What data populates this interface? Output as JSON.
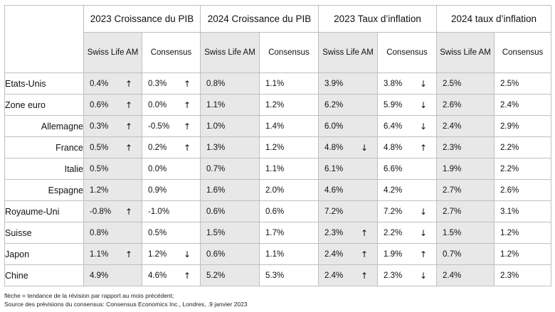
{
  "groups": [
    "2023 Croissance du PIB",
    "2024 Croissance du PIB",
    "2023 Taux d’inflation",
    "2024 taux d’inflation"
  ],
  "subheaders": [
    "Swiss Life AM",
    "Consensus",
    "Swiss Life AM",
    "Consensus",
    "Swiss Life AM",
    "Consensus",
    "Swiss Life AM",
    "Consensus"
  ],
  "rows": [
    {
      "country": "Etats-Unis",
      "align": "l",
      "cells": [
        {
          "v": "0.4%",
          "a": "up"
        },
        {
          "v": "0.3%",
          "a": "up"
        },
        {
          "v": "0.8%",
          "a": ""
        },
        {
          "v": "1.1%",
          "a": ""
        },
        {
          "v": "3.9%",
          "a": ""
        },
        {
          "v": "3.8%",
          "a": "down"
        },
        {
          "v": "2.5%",
          "a": ""
        },
        {
          "v": "2.5%",
          "a": ""
        }
      ]
    },
    {
      "country": "Zone euro",
      "align": "l",
      "cells": [
        {
          "v": "0.6%",
          "a": "up"
        },
        {
          "v": "0.0%",
          "a": "up"
        },
        {
          "v": "1.1%",
          "a": ""
        },
        {
          "v": "1.2%",
          "a": ""
        },
        {
          "v": "6.2%",
          "a": ""
        },
        {
          "v": "5.9%",
          "a": "down"
        },
        {
          "v": "2.6%",
          "a": ""
        },
        {
          "v": "2.4%",
          "a": ""
        }
      ]
    },
    {
      "country": "Allemagne",
      "align": "r",
      "cells": [
        {
          "v": "0.3%",
          "a": "up"
        },
        {
          "v": "-0.5%",
          "a": "up"
        },
        {
          "v": "1.0%",
          "a": ""
        },
        {
          "v": "1.4%",
          "a": ""
        },
        {
          "v": "6.0%",
          "a": ""
        },
        {
          "v": "6.4%",
          "a": "down"
        },
        {
          "v": "2.4%",
          "a": ""
        },
        {
          "v": "2.9%",
          "a": ""
        }
      ]
    },
    {
      "country": "France",
      "align": "r",
      "cells": [
        {
          "v": "0.5%",
          "a": "up"
        },
        {
          "v": "0.2%",
          "a": "up"
        },
        {
          "v": "1.3%",
          "a": ""
        },
        {
          "v": "1.2%",
          "a": ""
        },
        {
          "v": "4.8%",
          "a": "down"
        },
        {
          "v": "4.8%",
          "a": "up"
        },
        {
          "v": "2.3%",
          "a": ""
        },
        {
          "v": "2.2%",
          "a": ""
        }
      ]
    },
    {
      "country": "Italie",
      "align": "r",
      "cells": [
        {
          "v": "0.5%",
          "a": ""
        },
        {
          "v": "0.0%",
          "a": ""
        },
        {
          "v": "0.7%",
          "a": ""
        },
        {
          "v": "1.1%",
          "a": ""
        },
        {
          "v": "6.1%",
          "a": ""
        },
        {
          "v": "6.6%",
          "a": ""
        },
        {
          "v": "1.9%",
          "a": ""
        },
        {
          "v": "2.2%",
          "a": ""
        }
      ]
    },
    {
      "country": "Espagne",
      "align": "r",
      "cells": [
        {
          "v": "1.2%",
          "a": ""
        },
        {
          "v": "0.9%",
          "a": ""
        },
        {
          "v": "1.6%",
          "a": ""
        },
        {
          "v": "2.0%",
          "a": ""
        },
        {
          "v": "4.6%",
          "a": ""
        },
        {
          "v": "4.2%",
          "a": ""
        },
        {
          "v": "2.7%",
          "a": ""
        },
        {
          "v": "2.6%",
          "a": ""
        }
      ]
    },
    {
      "country": "Royaume-Uni",
      "align": "l",
      "cells": [
        {
          "v": "-0.8%",
          "a": "up"
        },
        {
          "v": "-1.0%",
          "a": ""
        },
        {
          "v": "0.6%",
          "a": ""
        },
        {
          "v": "0.6%",
          "a": ""
        },
        {
          "v": "7.2%",
          "a": ""
        },
        {
          "v": "7.2%",
          "a": "down"
        },
        {
          "v": "2.7%",
          "a": ""
        },
        {
          "v": "3.1%",
          "a": ""
        }
      ]
    },
    {
      "country": "Suisse",
      "align": "l",
      "cells": [
        {
          "v": "0.8%",
          "a": ""
        },
        {
          "v": "0.5%",
          "a": ""
        },
        {
          "v": "1.5%",
          "a": ""
        },
        {
          "v": "1.7%",
          "a": ""
        },
        {
          "v": "2.3%",
          "a": "up"
        },
        {
          "v": "2.2%",
          "a": "down"
        },
        {
          "v": "1.5%",
          "a": ""
        },
        {
          "v": "1.2%",
          "a": ""
        }
      ]
    },
    {
      "country": "Japon",
      "align": "l",
      "cells": [
        {
          "v": "1.1%",
          "a": "up"
        },
        {
          "v": "1.2%",
          "a": "down"
        },
        {
          "v": "0.6%",
          "a": ""
        },
        {
          "v": "1.1%",
          "a": ""
        },
        {
          "v": "2.4%",
          "a": "up"
        },
        {
          "v": "1.9%",
          "a": "up"
        },
        {
          "v": "0.7%",
          "a": ""
        },
        {
          "v": "1.2%",
          "a": ""
        }
      ]
    },
    {
      "country": "Chine",
      "align": "l",
      "cells": [
        {
          "v": "4.9%",
          "a": ""
        },
        {
          "v": "4.6%",
          "a": "up"
        },
        {
          "v": "5.2%",
          "a": ""
        },
        {
          "v": "5.3%",
          "a": ""
        },
        {
          "v": "2.4%",
          "a": "up"
        },
        {
          "v": "2.3%",
          "a": "down"
        },
        {
          "v": "2.4%",
          "a": ""
        },
        {
          "v": "2.3%",
          "a": ""
        }
      ]
    }
  ],
  "arrow_glyphs": {
    "up": "↑",
    "down": "↓"
  },
  "shade_color": "#e8e8e8",
  "footnotes": [
    "flèche = tendance de la révision par rapport au mois précédent;",
    "Source des prévisions du consensus: Consensus Economics Inc., Londres, .9 janvier 2023"
  ]
}
